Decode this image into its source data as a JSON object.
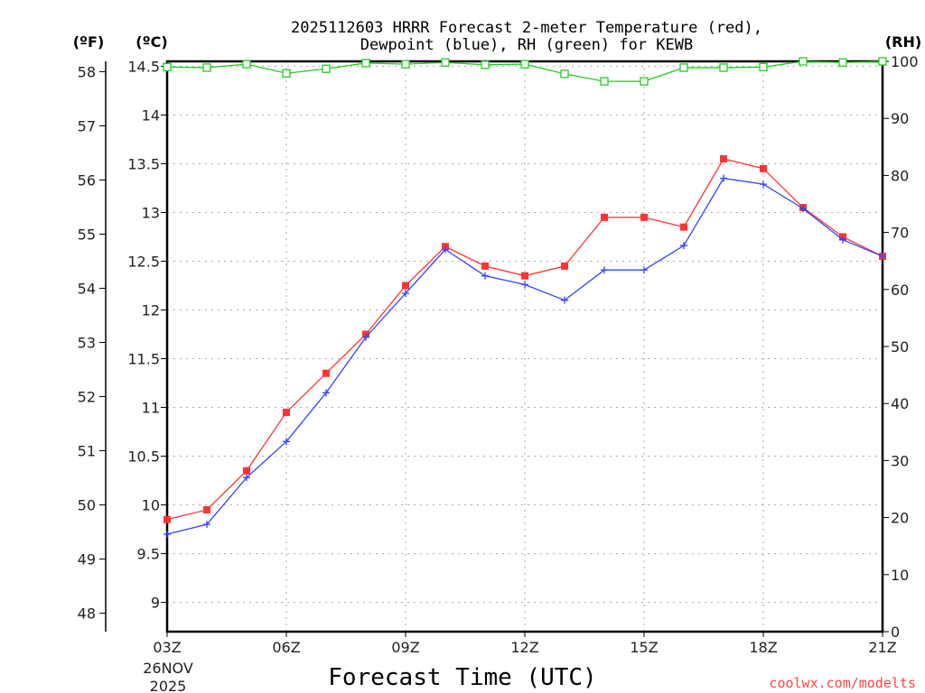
{
  "chart_data": {
    "type": "line",
    "title_line1": "2025112603 HRRR Forecast 2-meter Temperature (red),",
    "title_line2": "Dewpoint (blue), RH (green) for KEWB",
    "xlabel": "Forecast Time (UTC)",
    "x_ticks": [
      "03Z",
      "06Z",
      "09Z",
      "12Z",
      "15Z",
      "18Z",
      "21Z"
    ],
    "x_date_line1": "26NOV",
    "x_date_line2": "2025",
    "x_hours": [
      3,
      4,
      5,
      6,
      7,
      8,
      9,
      10,
      11,
      12,
      13,
      14,
      15,
      16,
      17,
      18,
      19,
      20,
      21
    ],
    "left_unit_f": "(ºF)",
    "left_unit_c": "(ºC)",
    "right_unit": "(RH)",
    "f_ticks": [
      "48",
      "49",
      "50",
      "51",
      "52",
      "53",
      "54",
      "55",
      "56",
      "57",
      "58"
    ],
    "c_ticks": [
      "9",
      "9.5",
      "10",
      "10.5",
      "11",
      "11.5",
      "12",
      "12.5",
      "13",
      "13.5",
      "14",
      "14.5"
    ],
    "rh_ticks": [
      "0",
      "10",
      "20",
      "30",
      "40",
      "50",
      "60",
      "70",
      "80",
      "90",
      "100"
    ],
    "c_range": [
      8.7,
      14.55
    ],
    "rh_range": [
      0,
      100
    ],
    "grid": true,
    "series": [
      {
        "name": "Temperature",
        "unit": "C",
        "color": "#ff3333",
        "marker": "square",
        "values": [
          9.85,
          9.95,
          10.35,
          10.95,
          11.35,
          11.75,
          12.25,
          12.65,
          12.45,
          12.35,
          12.45,
          12.95,
          12.95,
          12.85,
          13.55,
          13.45,
          13.05,
          12.75,
          12.55
        ]
      },
      {
        "name": "Dewpoint",
        "unit": "C",
        "color": "#3344ff",
        "marker": "plus",
        "values": [
          9.7,
          9.8,
          10.28,
          10.65,
          11.15,
          11.72,
          12.17,
          12.62,
          12.35,
          12.26,
          12.1,
          12.41,
          12.41,
          12.66,
          13.35,
          13.29,
          13.04,
          12.72,
          12.55
        ]
      },
      {
        "name": "RH",
        "unit": "%",
        "color": "#22cc22",
        "marker": "open-square",
        "values": [
          99.0,
          98.9,
          99.5,
          97.9,
          98.7,
          99.7,
          99.5,
          99.8,
          99.4,
          99.5,
          97.8,
          96.5,
          96.5,
          98.9,
          98.9,
          99.0,
          100,
          99.8,
          100
        ]
      }
    ],
    "credit": "coolwx.com/modelts"
  }
}
